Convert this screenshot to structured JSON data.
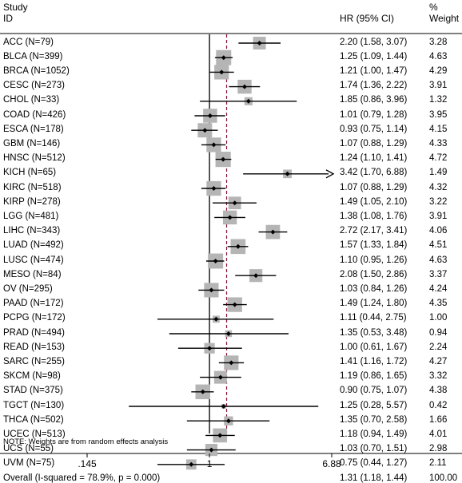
{
  "header": {
    "study": "Study",
    "id": "ID",
    "hr": "HR (95% CI)",
    "pct": "%",
    "weight": "Weight"
  },
  "note": "NOTE: Weights are from random effects analysis",
  "chart_data": {
    "type": "forest",
    "scale": "log",
    "xlim": [
      0.145,
      6.88
    ],
    "reference_line": 1,
    "pooled_line": 1.31,
    "x_ticks": [
      {
        "value": 0.145,
        "label": ".145"
      },
      {
        "value": 1,
        "label": "1"
      },
      {
        "value": 6.88,
        "label": "6.88"
      }
    ],
    "studies": [
      {
        "id": "ACC (N=79)",
        "hr": 2.2,
        "lo": 1.58,
        "hi": 3.07,
        "ci": "2.20 (1.58, 3.07)",
        "weight": "3.28",
        "w": 3.28
      },
      {
        "id": "BLCA (N=399)",
        "hr": 1.25,
        "lo": 1.09,
        "hi": 1.44,
        "ci": "1.25 (1.09, 1.44)",
        "weight": "4.63",
        "w": 4.63
      },
      {
        "id": "BRCA (N=1052)",
        "hr": 1.21,
        "lo": 1.0,
        "hi": 1.47,
        "ci": "1.21 (1.00, 1.47)",
        "weight": "4.29",
        "w": 4.29
      },
      {
        "id": "CESC (N=273)",
        "hr": 1.74,
        "lo": 1.36,
        "hi": 2.22,
        "ci": "1.74 (1.36, 2.22)",
        "weight": "3.91",
        "w": 3.91
      },
      {
        "id": "CHOL (N=33)",
        "hr": 1.85,
        "lo": 0.86,
        "hi": 3.96,
        "ci": "1.85 (0.86, 3.96)",
        "weight": "1.32",
        "w": 1.32
      },
      {
        "id": "COAD (N=426)",
        "hr": 1.01,
        "lo": 0.79,
        "hi": 1.28,
        "ci": "1.01 (0.79, 1.28)",
        "weight": "3.95",
        "w": 3.95
      },
      {
        "id": "ESCA (N=178)",
        "hr": 0.93,
        "lo": 0.75,
        "hi": 1.14,
        "ci": "0.93 (0.75, 1.14)",
        "weight": "4.15",
        "w": 4.15
      },
      {
        "id": "GBM (N=146)",
        "hr": 1.07,
        "lo": 0.88,
        "hi": 1.29,
        "ci": "1.07 (0.88, 1.29)",
        "weight": "4.33",
        "w": 4.33
      },
      {
        "id": "HNSC (N=512)",
        "hr": 1.24,
        "lo": 1.1,
        "hi": 1.41,
        "ci": "1.24 (1.10, 1.41)",
        "weight": "4.72",
        "w": 4.72
      },
      {
        "id": "KICH (N=65)",
        "hr": 3.42,
        "lo": 1.7,
        "hi": 6.88,
        "ci": "3.42 (1.70, 6.88)",
        "weight": "1.49",
        "w": 1.49,
        "arrow": true
      },
      {
        "id": "KIRC (N=518)",
        "hr": 1.07,
        "lo": 0.88,
        "hi": 1.29,
        "ci": "1.07 (0.88, 1.29)",
        "weight": "4.32",
        "w": 4.32
      },
      {
        "id": "KIRP (N=278)",
        "hr": 1.49,
        "lo": 1.05,
        "hi": 2.1,
        "ci": "1.49 (1.05, 2.10)",
        "weight": "3.22",
        "w": 3.22
      },
      {
        "id": "LGG (N=481)",
        "hr": 1.38,
        "lo": 1.08,
        "hi": 1.76,
        "ci": "1.38 (1.08, 1.76)",
        "weight": "3.91",
        "w": 3.91
      },
      {
        "id": "LIHC (N=343)",
        "hr": 2.72,
        "lo": 2.17,
        "hi": 3.41,
        "ci": "2.72 (2.17, 3.41)",
        "weight": "4.06",
        "w": 4.06
      },
      {
        "id": "LUAD (N=492)",
        "hr": 1.57,
        "lo": 1.33,
        "hi": 1.84,
        "ci": "1.57 (1.33, 1.84)",
        "weight": "4.51",
        "w": 4.51
      },
      {
        "id": "LUSC (N=474)",
        "hr": 1.1,
        "lo": 0.95,
        "hi": 1.26,
        "ci": "1.10 (0.95, 1.26)",
        "weight": "4.63",
        "w": 4.63
      },
      {
        "id": "MESO (N=84)",
        "hr": 2.08,
        "lo": 1.5,
        "hi": 2.86,
        "ci": "2.08 (1.50, 2.86)",
        "weight": "3.37",
        "w": 3.37
      },
      {
        "id": "OV (N=295)",
        "hr": 1.03,
        "lo": 0.84,
        "hi": 1.26,
        "ci": "1.03 (0.84, 1.26)",
        "weight": "4.24",
        "w": 4.24
      },
      {
        "id": "PAAD (N=172)",
        "hr": 1.49,
        "lo": 1.24,
        "hi": 1.8,
        "ci": "1.49 (1.24, 1.80)",
        "weight": "4.35",
        "w": 4.35
      },
      {
        "id": "PCPG (N=172)",
        "hr": 1.11,
        "lo": 0.44,
        "hi": 2.75,
        "ci": "1.11 (0.44, 2.75)",
        "weight": "1.00",
        "w": 1.0
      },
      {
        "id": "PRAD (N=494)",
        "hr": 1.35,
        "lo": 0.53,
        "hi": 3.48,
        "ci": "1.35 (0.53, 3.48)",
        "weight": "0.94",
        "w": 0.94
      },
      {
        "id": "READ (N=153)",
        "hr": 1.0,
        "lo": 0.61,
        "hi": 1.67,
        "ci": "1.00 (0.61, 1.67)",
        "weight": "2.24",
        "w": 2.24
      },
      {
        "id": "SARC (N=255)",
        "hr": 1.41,
        "lo": 1.16,
        "hi": 1.72,
        "ci": "1.41 (1.16, 1.72)",
        "weight": "4.27",
        "w": 4.27
      },
      {
        "id": "SKCM (N=98)",
        "hr": 1.19,
        "lo": 0.86,
        "hi": 1.65,
        "ci": "1.19 (0.86, 1.65)",
        "weight": "3.32",
        "w": 3.32
      },
      {
        "id": "STAD (N=375)",
        "hr": 0.9,
        "lo": 0.75,
        "hi": 1.07,
        "ci": "0.90 (0.75, 1.07)",
        "weight": "4.38",
        "w": 4.38
      },
      {
        "id": "TGCT (N=130)",
        "hr": 1.25,
        "lo": 0.28,
        "hi": 5.57,
        "ci": "1.25 (0.28, 5.57)",
        "weight": "0.42",
        "w": 0.42
      },
      {
        "id": "THCA (N=502)",
        "hr": 1.35,
        "lo": 0.7,
        "hi": 2.58,
        "ci": "1.35 (0.70, 2.58)",
        "weight": "1.66",
        "w": 1.66
      },
      {
        "id": "UCEC (N=513)",
        "hr": 1.18,
        "lo": 0.94,
        "hi": 1.49,
        "ci": "1.18 (0.94, 1.49)",
        "weight": "4.01",
        "w": 4.01
      },
      {
        "id": "UCS (N=55)",
        "hr": 1.03,
        "lo": 0.7,
        "hi": 1.51,
        "ci": "1.03 (0.70, 1.51)",
        "weight": "2.98",
        "w": 2.98
      },
      {
        "id": "UVM (N=75)",
        "hr": 0.75,
        "lo": 0.44,
        "hi": 1.27,
        "ci": "0.75 (0.44, 1.27)",
        "weight": "2.11",
        "w": 2.11
      }
    ],
    "overall": {
      "id": "Overall  (I-squared = 78.9%, p = 0.000)",
      "hr": 1.31,
      "lo": 1.18,
      "hi": 1.44,
      "ci": "1.31 (1.18, 1.44)",
      "weight": "100.00"
    },
    "colors": {
      "box": "#b5b5b5",
      "pooled_line": "#8b1a3a",
      "diamond": "#1f1f6b",
      "ink": "#000000"
    }
  }
}
